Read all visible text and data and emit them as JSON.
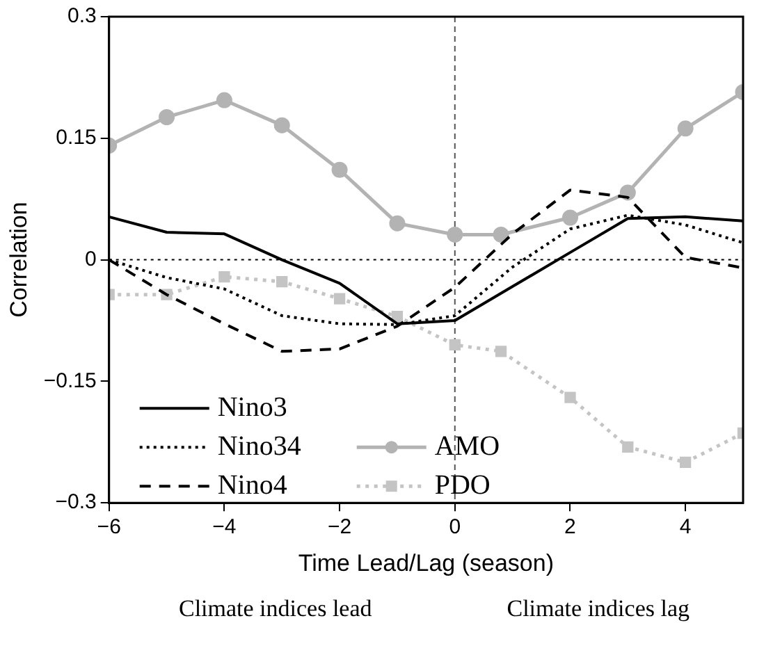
{
  "chart_data": {
    "type": "line",
    "xlabel": "Time Lead/Lag (season)",
    "ylabel": "Correlation",
    "xlim": [
      -6,
      5
    ],
    "xticks": [
      {
        "value": -6,
        "label": "−6"
      },
      {
        "value": -4,
        "label": "−4"
      },
      {
        "value": -2,
        "label": "−2"
      },
      0,
      2,
      4
    ],
    "ylim": [
      -0.3,
      0.3
    ],
    "yticks": [
      {
        "value": -0.3,
        "label": "−0.3"
      },
      {
        "value": -0.15,
        "label": "−0.15"
      },
      0,
      0.15,
      0.3
    ],
    "grid": false,
    "legend": "bottom left",
    "series": [
      {
        "name": "Nino3",
        "color": "#000000",
        "line_style": "solid",
        "marker": "none",
        "x": [
          -6,
          -5,
          -4,
          -3,
          -2,
          -1,
          0,
          1,
          2,
          3,
          4,
          5
        ],
        "values": [
          0.053,
          0.034,
          0.032,
          0,
          -0.029,
          -0.079,
          -0.075,
          -0.033,
          0.009,
          0.051,
          0.053,
          0.048
        ]
      },
      {
        "name": "Nino34",
        "color": "#000000",
        "line_style": "dotted",
        "marker": "none",
        "x": [
          -6,
          -5,
          -4,
          -3,
          -2,
          -1,
          0,
          1,
          2,
          3,
          4,
          5
        ],
        "values": [
          0,
          -0.022,
          -0.036,
          -0.069,
          -0.079,
          -0.08,
          -0.069,
          -0.009,
          0.038,
          0.055,
          0.043,
          0.021
        ]
      },
      {
        "name": "Nino4",
        "color": "#000000",
        "line_style": "dashed",
        "marker": "none",
        "x": [
          -6,
          -5,
          -4,
          -3,
          -2,
          -1,
          0,
          1,
          2,
          3,
          4,
          5
        ],
        "values": [
          0,
          -0.043,
          -0.079,
          -0.113,
          -0.11,
          -0.082,
          -0.034,
          0.032,
          0.086,
          0.077,
          0.003,
          -0.01
        ]
      },
      {
        "name": "AMO",
        "color": "#b3b3b3",
        "line_style": "solid",
        "marker": "circle",
        "x": [
          -6,
          -5,
          -4,
          -3,
          -2,
          -1,
          0,
          0.8,
          2,
          3,
          4,
          5
        ],
        "values": [
          0.141,
          0.176,
          0.197,
          0.166,
          0.111,
          0.045,
          0.031,
          0.031,
          0.052,
          0.083,
          0.162,
          0.207
        ]
      },
      {
        "name": "PDO",
        "color": "#c4c4c4",
        "line_style": "dotted",
        "marker": "square",
        "x": [
          -6,
          -5,
          -4,
          -3,
          -2,
          -1,
          0,
          0.8,
          2,
          3,
          4,
          5
        ],
        "values": [
          -0.043,
          -0.043,
          -0.021,
          -0.027,
          -0.048,
          -0.07,
          -0.105,
          -0.113,
          -0.17,
          -0.231,
          -0.25,
          -0.214
        ]
      }
    ],
    "ref_lines": [
      {
        "axis": "x",
        "value": 0,
        "color": "#555555",
        "line_style": "dashed"
      },
      {
        "axis": "y",
        "value": 0,
        "color": "#000000",
        "line_style": "dotted"
      }
    ],
    "annotations": [
      "Climate indices lead",
      "Climate indices lag"
    ]
  }
}
